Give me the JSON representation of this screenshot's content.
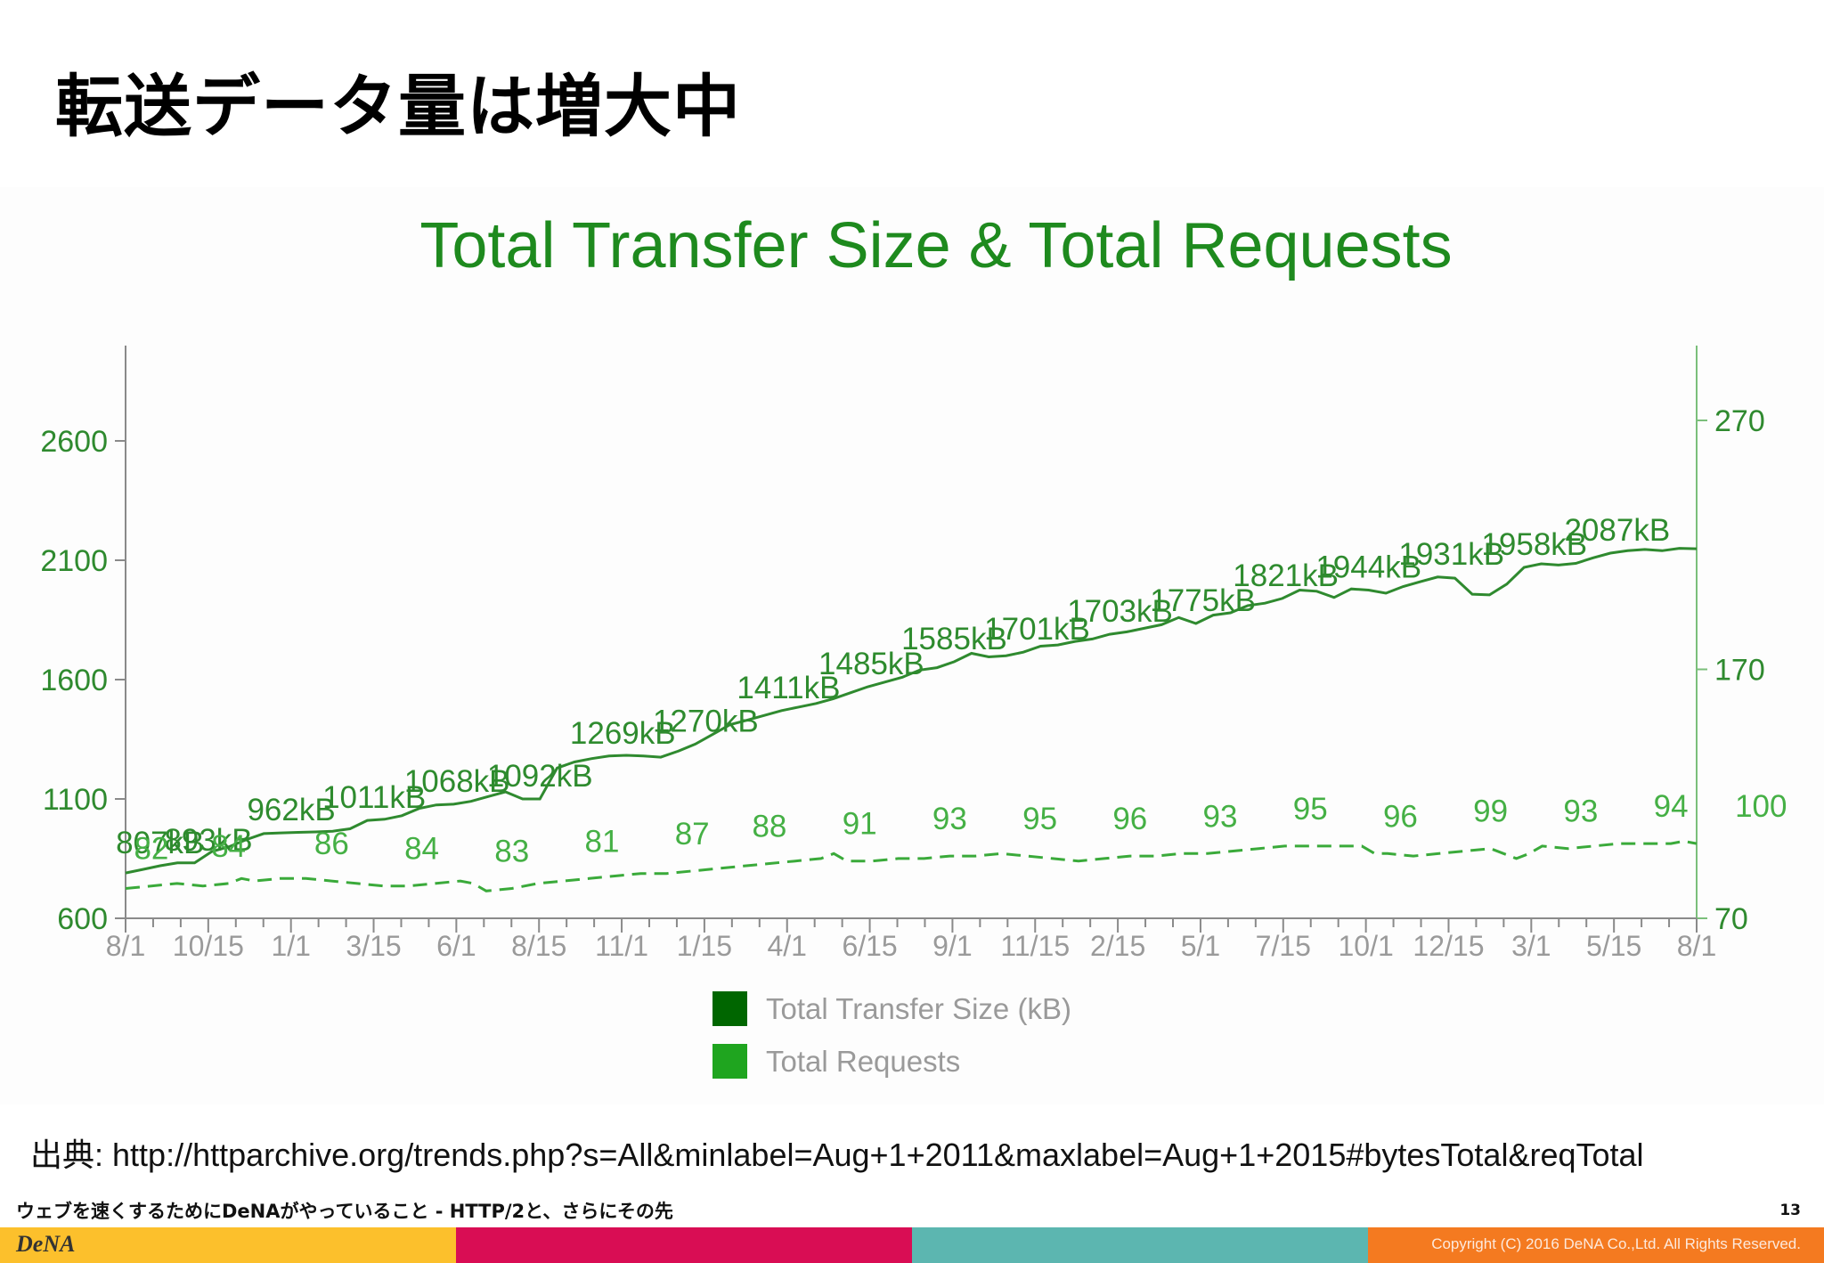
{
  "slide": {
    "title": "転送データ量は増大中",
    "source_label": "出典",
    "source_url": ": http://httparchive.org/trends.php?s=All&minlabel=Aug+1+2011&maxlabel=Aug+1+2015#bytesTotal&reqTotal",
    "footer_title": "ウェブを速くするためにDeNAがやっていること - HTTP/2と、さらにその先",
    "page_number": "13",
    "logo": "DeNA",
    "copyright": "Copyright (C) 2016 DeNA Co.,Ltd. All Rights Reserved.",
    "bar_colors": [
      "#fcc02c",
      "#d90d54",
      "#5cb6b0",
      "#f47a20"
    ]
  },
  "chart_data": {
    "type": "line",
    "title": "Total Transfer Size & Total Requests",
    "x_ticks": [
      "8/1",
      "10/15",
      "1/1",
      "3/15",
      "6/1",
      "8/15",
      "11/1",
      "1/15",
      "4/1",
      "6/15",
      "9/1",
      "11/15",
      "2/15",
      "5/1",
      "7/15",
      "10/1",
      "12/15",
      "3/1",
      "5/15",
      "8/1"
    ],
    "left_axis": {
      "ticks": [
        600,
        1100,
        1600,
        2100,
        2600
      ],
      "range": [
        600,
        2990
      ]
    },
    "right_axis": {
      "ticks": [
        70,
        170,
        270
      ],
      "range": [
        70,
        280
      ]
    },
    "legend": [
      {
        "name": "Total Transfer Size (kB)",
        "color": "#006600"
      },
      {
        "name": "Total Requests",
        "color": "#1fa51f"
      }
    ],
    "series": [
      {
        "name": "Total Transfer Size (kB)",
        "axis": "left",
        "color": "#2f8a2f",
        "style": "solid",
        "values": [
          [
            0,
            790
          ],
          [
            0.5,
            805
          ],
          [
            1,
            820
          ],
          [
            1.5,
            832
          ],
          [
            2,
            832
          ],
          [
            2.5,
            880
          ],
          [
            3,
            900
          ],
          [
            3.5,
            930
          ],
          [
            4,
            955
          ],
          [
            4.5,
            958
          ],
          [
            5,
            960
          ],
          [
            5.5,
            962
          ],
          [
            6,
            965
          ],
          [
            6.5,
            975
          ],
          [
            7,
            1010
          ],
          [
            7.5,
            1015
          ],
          [
            8,
            1030
          ],
          [
            8.5,
            1060
          ],
          [
            9,
            1075
          ],
          [
            9.5,
            1078
          ],
          [
            10,
            1090
          ],
          [
            10.5,
            1110
          ],
          [
            11,
            1130
          ],
          [
            11.5,
            1100
          ],
          [
            12,
            1100
          ],
          [
            12.5,
            1230
          ],
          [
            13,
            1255
          ],
          [
            13.5,
            1269
          ],
          [
            14,
            1280
          ],
          [
            14.5,
            1283
          ],
          [
            15,
            1280
          ],
          [
            15.5,
            1275
          ],
          [
            16,
            1300
          ],
          [
            16.5,
            1330
          ],
          [
            17,
            1370
          ],
          [
            17.5,
            1411
          ],
          [
            18,
            1430
          ],
          [
            18.5,
            1450
          ],
          [
            19,
            1470
          ],
          [
            19.5,
            1485
          ],
          [
            20,
            1500
          ],
          [
            20.5,
            1520
          ],
          [
            21,
            1545
          ],
          [
            21.5,
            1570
          ],
          [
            22,
            1590
          ],
          [
            22.5,
            1610
          ],
          [
            23,
            1640
          ],
          [
            23.5,
            1650
          ],
          [
            24,
            1675
          ],
          [
            24.5,
            1710
          ],
          [
            25,
            1695
          ],
          [
            25.5,
            1700
          ],
          [
            26,
            1715
          ],
          [
            26.5,
            1740
          ],
          [
            27,
            1745
          ],
          [
            27.5,
            1760
          ],
          [
            28,
            1770
          ],
          [
            28.5,
            1790
          ],
          [
            29,
            1800
          ],
          [
            29.5,
            1815
          ],
          [
            30,
            1830
          ],
          [
            30.5,
            1860
          ],
          [
            31,
            1835
          ],
          [
            31.5,
            1870
          ],
          [
            32,
            1880
          ],
          [
            32.5,
            1910
          ],
          [
            33,
            1920
          ],
          [
            33.5,
            1940
          ],
          [
            34,
            1975
          ],
          [
            34.5,
            1970
          ],
          [
            35,
            1944
          ],
          [
            35.5,
            1980
          ],
          [
            36,
            1975
          ],
          [
            36.5,
            1962
          ],
          [
            37,
            1990
          ],
          [
            37.5,
            2010
          ],
          [
            38,
            2030
          ],
          [
            38.5,
            2025
          ],
          [
            39,
            1958
          ],
          [
            39.5,
            1955
          ],
          [
            40,
            2000
          ],
          [
            40.5,
            2070
          ],
          [
            41,
            2085
          ],
          [
            41.5,
            2080
          ],
          [
            42,
            2087
          ],
          [
            42.5,
            2110
          ],
          [
            43,
            2130
          ],
          [
            43.5,
            2140
          ],
          [
            44,
            2145
          ],
          [
            44.5,
            2140
          ],
          [
            45,
            2150
          ],
          [
            45.5,
            2148
          ]
        ],
        "labels": [
          {
            "i": 1,
            "text": "807kB"
          },
          {
            "i": 2.4,
            "text": "893kB"
          },
          {
            "i": 4.8,
            "text": "962kB"
          },
          {
            "i": 7.2,
            "text": "1011kB"
          },
          {
            "i": 9.6,
            "text": "1068kB"
          },
          {
            "i": 12,
            "text": "1092kB"
          },
          {
            "i": 14.4,
            "text": "1269kB"
          },
          {
            "i": 16.8,
            "text": "1270kB"
          },
          {
            "i": 19.2,
            "text": "1411kB"
          },
          {
            "i": 21.6,
            "text": "1485kB"
          },
          {
            "i": 24,
            "text": "1585kB"
          },
          {
            "i": 26.4,
            "text": "1701kB"
          },
          {
            "i": 28.8,
            "text": "1703kB"
          },
          {
            "i": 31.2,
            "text": "1775kB"
          },
          {
            "i": 33.6,
            "text": "1821kB"
          },
          {
            "i": 36,
            "text": "1944kB"
          },
          {
            "i": 38.4,
            "text": "1931kB"
          },
          {
            "i": 40.8,
            "text": "1958kB"
          },
          {
            "i": 43.2,
            "text": "2087kB"
          }
        ]
      },
      {
        "name": "Total Requests",
        "axis": "right",
        "color": "#3aaa3a",
        "style": "dashed",
        "values": [
          [
            0,
            82
          ],
          [
            1,
            83
          ],
          [
            2,
            84
          ],
          [
            3,
            83
          ],
          [
            4,
            84
          ],
          [
            4.5,
            86
          ],
          [
            5,
            85
          ],
          [
            6,
            86
          ],
          [
            7,
            86
          ],
          [
            8,
            85
          ],
          [
            9,
            84
          ],
          [
            10,
            83
          ],
          [
            11,
            83
          ],
          [
            12,
            84
          ],
          [
            13,
            85
          ],
          [
            13.5,
            84
          ],
          [
            14,
            81
          ],
          [
            15,
            82
          ],
          [
            16,
            84
          ],
          [
            17,
            85
          ],
          [
            18,
            86
          ],
          [
            19,
            87
          ],
          [
            20,
            88
          ],
          [
            21,
            88
          ],
          [
            22,
            89
          ],
          [
            23,
            90
          ],
          [
            24,
            91
          ],
          [
            25,
            92
          ],
          [
            26,
            93
          ],
          [
            27,
            94
          ],
          [
            27.5,
            96
          ],
          [
            28,
            93
          ],
          [
            29,
            93
          ],
          [
            30,
            94
          ],
          [
            31,
            94
          ],
          [
            32,
            95
          ],
          [
            33,
            95
          ],
          [
            34,
            96
          ],
          [
            35,
            95
          ],
          [
            36,
            94
          ],
          [
            37,
            93
          ],
          [
            38,
            94
          ],
          [
            39,
            95
          ],
          [
            40,
            95
          ],
          [
            41,
            96
          ],
          [
            42,
            96
          ],
          [
            43,
            97
          ],
          [
            44,
            98
          ],
          [
            45,
            99
          ],
          [
            46,
            99
          ],
          [
            47,
            99
          ],
          [
            48,
            99
          ],
          [
            48.5,
            96
          ],
          [
            49,
            96
          ],
          [
            50,
            95
          ],
          [
            51,
            96
          ],
          [
            52,
            97
          ],
          [
            53,
            98
          ],
          [
            54,
            94
          ],
          [
            54.5,
            96
          ],
          [
            55,
            99
          ],
          [
            56,
            98
          ],
          [
            57,
            99
          ],
          [
            58,
            100
          ],
          [
            59,
            100
          ],
          [
            60,
            100
          ],
          [
            60.5,
            101
          ],
          [
            61,
            100
          ]
        ],
        "labels": [
          {
            "i": 1,
            "text": "82"
          },
          {
            "i": 4,
            "text": "84"
          },
          {
            "i": 8,
            "text": "86"
          },
          {
            "i": 11.5,
            "text": "84"
          },
          {
            "i": 15,
            "text": "83"
          },
          {
            "i": 18.5,
            "text": "81"
          },
          {
            "i": 22,
            "text": "87"
          },
          {
            "i": 25,
            "text": "88"
          },
          {
            "i": 28.5,
            "text": "91"
          },
          {
            "i": 32,
            "text": "93"
          },
          {
            "i": 35.5,
            "text": "95"
          },
          {
            "i": 39,
            "text": "96"
          },
          {
            "i": 42.5,
            "text": "93"
          },
          {
            "i": 46,
            "text": "95"
          },
          {
            "i": 49.5,
            "text": "96"
          },
          {
            "i": 53,
            "text": "99"
          },
          {
            "i": 56.5,
            "text": "93"
          },
          {
            "i": 60,
            "text": "94"
          },
          {
            "i": 63.5,
            "text": "100"
          }
        ]
      }
    ]
  }
}
